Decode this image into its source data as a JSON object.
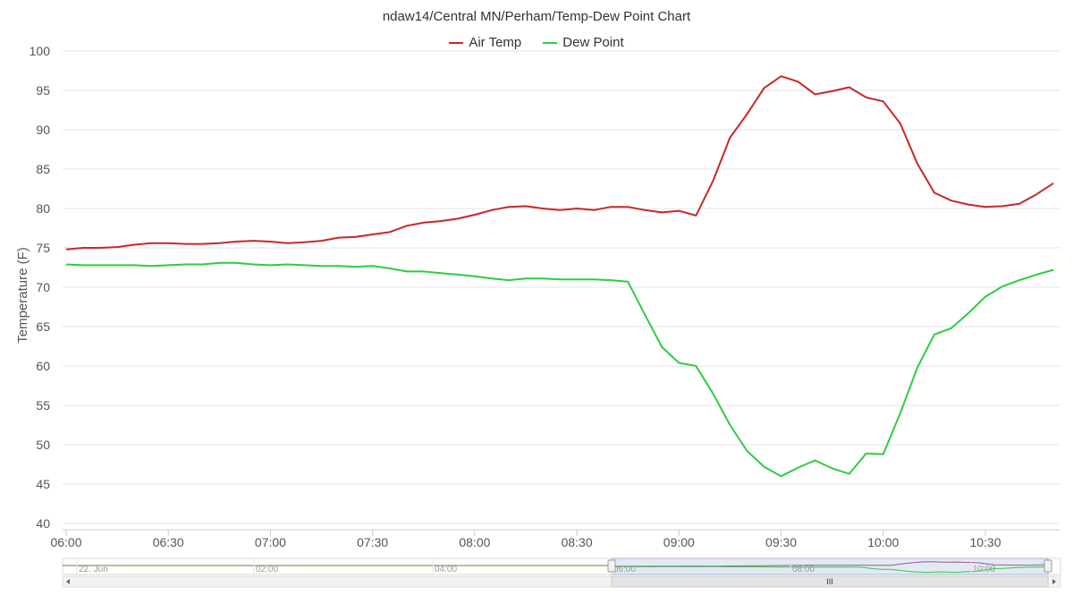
{
  "title": "ndaw14/Central MN/Perham/Temp-Dew Point Chart",
  "colors": {
    "air_temp": "#c62828",
    "dew_point": "#2ecc40",
    "grid": "#e6e6e6",
    "axis_text": "#555555"
  },
  "legend": {
    "air_temp": "Air Temp",
    "dew_point": "Dew Point"
  },
  "navigator": {
    "labels": [
      "22. Jun",
      "02:00",
      "04:00",
      "06:00",
      "08:00",
      "10:00"
    ],
    "scroll_grip": "III"
  },
  "chart_data": {
    "type": "line",
    "title": "ndaw14/Central MN/Perham/Temp-Dew Point Chart",
    "xlabel": "",
    "ylabel": "Temperature (F)",
    "ylim": [
      40,
      100
    ],
    "yticks": [
      40,
      45,
      50,
      55,
      60,
      65,
      70,
      75,
      80,
      85,
      90,
      95,
      100
    ],
    "xlim": [
      "06:00",
      "10:50"
    ],
    "xticks": [
      "06:00",
      "06:30",
      "07:00",
      "07:30",
      "08:00",
      "08:30",
      "09:00",
      "09:30",
      "10:00",
      "10:30"
    ],
    "grid": true,
    "legend_position": "top-center",
    "x": [
      "06:00",
      "06:05",
      "06:10",
      "06:15",
      "06:20",
      "06:25",
      "06:30",
      "06:35",
      "06:40",
      "06:45",
      "06:50",
      "06:55",
      "07:00",
      "07:05",
      "07:10",
      "07:15",
      "07:20",
      "07:25",
      "07:30",
      "07:35",
      "07:40",
      "07:45",
      "07:50",
      "07:55",
      "08:00",
      "08:05",
      "08:10",
      "08:15",
      "08:20",
      "08:25",
      "08:30",
      "08:35",
      "08:40",
      "08:45",
      "08:50",
      "08:55",
      "09:00",
      "09:05",
      "09:10",
      "09:15",
      "09:20",
      "09:25",
      "09:30",
      "09:35",
      "09:40",
      "09:45",
      "09:50",
      "09:55",
      "10:00",
      "10:05",
      "10:10",
      "10:15",
      "10:20",
      "10:25",
      "10:30",
      "10:35",
      "10:40",
      "10:45",
      "10:50"
    ],
    "series": [
      {
        "name": "Air Temp",
        "values": [
          74.8,
          75.0,
          75.0,
          75.1,
          75.4,
          75.6,
          75.6,
          75.5,
          75.5,
          75.6,
          75.8,
          75.9,
          75.8,
          75.6,
          75.7,
          75.9,
          76.3,
          76.4,
          76.7,
          77.0,
          77.8,
          78.2,
          78.4,
          78.7,
          79.2,
          79.8,
          80.2,
          80.3,
          80.0,
          79.8,
          80.0,
          79.8,
          80.2,
          80.2,
          79.8,
          79.5,
          79.7,
          79.1,
          83.5,
          89.0,
          92.0,
          95.3,
          96.8,
          96.1,
          94.5,
          94.9,
          95.4,
          94.1,
          93.6,
          90.8,
          85.7,
          82.0,
          81.0,
          80.5,
          80.2,
          80.3,
          80.6,
          81.8,
          83.2
        ]
      },
      {
        "name": "Dew Point",
        "values": [
          72.9,
          72.8,
          72.8,
          72.8,
          72.8,
          72.7,
          72.8,
          72.9,
          72.9,
          73.1,
          73.1,
          72.9,
          72.8,
          72.9,
          72.8,
          72.7,
          72.7,
          72.6,
          72.7,
          72.4,
          72.0,
          72.0,
          71.8,
          71.6,
          71.4,
          71.1,
          70.9,
          71.1,
          71.1,
          71.0,
          71.0,
          71.0,
          70.9,
          70.7,
          66.5,
          62.4,
          60.4,
          60.0,
          56.5,
          52.5,
          49.2,
          47.2,
          46.0,
          47.1,
          48.0,
          47.0,
          46.3,
          48.9,
          48.8,
          54.0,
          59.8,
          64.0,
          64.8,
          66.7,
          68.8,
          70.1,
          70.9,
          71.6,
          72.2
        ]
      }
    ]
  }
}
